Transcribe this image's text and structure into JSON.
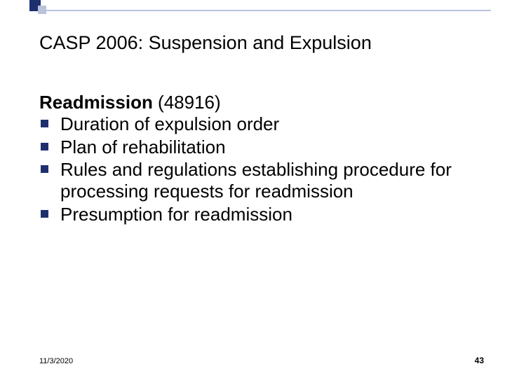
{
  "colors": {
    "accent_dark": "#1f2f6e",
    "accent_light": "#b9c3dc",
    "text": "#000000",
    "background": "#ffffff"
  },
  "title": "CASP 2006:  Suspension and Expulsion",
  "section": {
    "heading_bold": "Readmission",
    "heading_rest": " (48916)"
  },
  "bullets": [
    "Duration of expulsion order",
    "Plan of rehabilitation",
    "Rules and regulations establishing procedure for processing requests for readmission",
    "Presumption for readmission"
  ],
  "footer": {
    "date": "11/3/2020",
    "page": "43"
  },
  "typography": {
    "title_fontsize": 27,
    "body_fontsize": 26,
    "footer_date_fontsize": 11,
    "footer_page_fontsize": 12
  }
}
